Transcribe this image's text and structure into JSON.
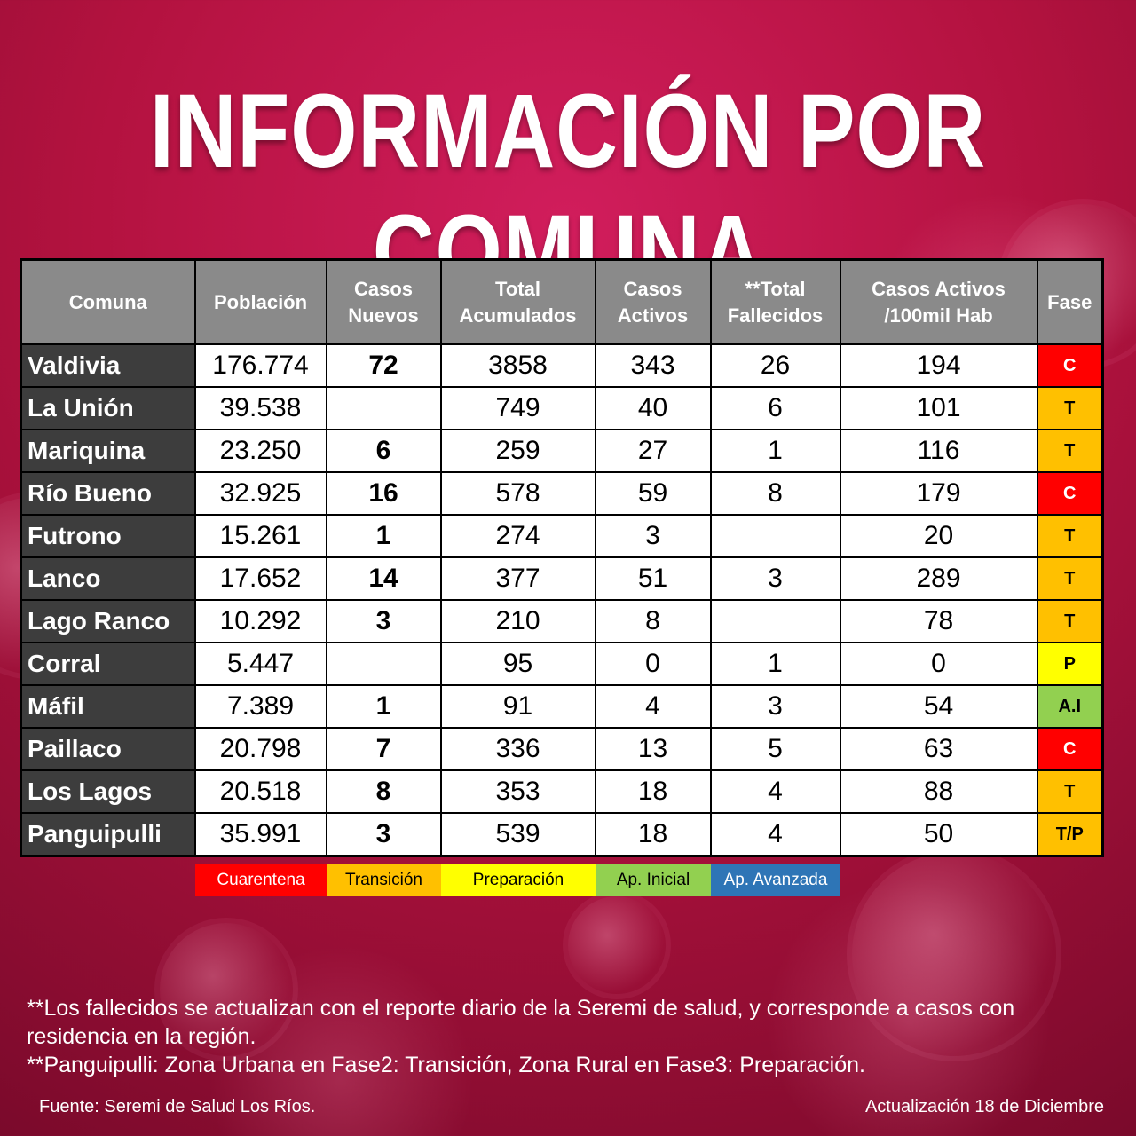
{
  "title": "INFORMACIÓN POR COMUNA",
  "table": {
    "headers": [
      {
        "line1": "Comuna",
        "line2": ""
      },
      {
        "line1": "Población",
        "line2": ""
      },
      {
        "line1": "Casos",
        "line2": "Nuevos"
      },
      {
        "line1": "Total",
        "line2": "Acumulados"
      },
      {
        "line1": "Casos",
        "line2": "Activos"
      },
      {
        "line1": "**Total",
        "line2": "Fallecidos"
      },
      {
        "line1": "Casos Activos",
        "line2": "/100mil Hab"
      },
      {
        "line1": "Fase",
        "line2": ""
      }
    ],
    "rows": [
      {
        "comuna": "Valdivia",
        "poblacion": "176.774",
        "nuevos": "72",
        "acumulados": "3858",
        "activos": "343",
        "fallecidos": "26",
        "por100mil": "194",
        "fase": "C"
      },
      {
        "comuna": "La Unión",
        "poblacion": "39.538",
        "nuevos": "",
        "acumulados": "749",
        "activos": "40",
        "fallecidos": "6",
        "por100mil": "101",
        "fase": "T"
      },
      {
        "comuna": "Mariquina",
        "poblacion": "23.250",
        "nuevos": "6",
        "acumulados": "259",
        "activos": "27",
        "fallecidos": "1",
        "por100mil": "116",
        "fase": "T"
      },
      {
        "comuna": "Río Bueno",
        "poblacion": "32.925",
        "nuevos": "16",
        "acumulados": "578",
        "activos": "59",
        "fallecidos": "8",
        "por100mil": "179",
        "fase": "C"
      },
      {
        "comuna": "Futrono",
        "poblacion": "15.261",
        "nuevos": "1",
        "acumulados": "274",
        "activos": "3",
        "fallecidos": "",
        "por100mil": "20",
        "fase": "T"
      },
      {
        "comuna": "Lanco",
        "poblacion": "17.652",
        "nuevos": "14",
        "acumulados": "377",
        "activos": "51",
        "fallecidos": "3",
        "por100mil": "289",
        "fase": "T"
      },
      {
        "comuna": "Lago Ranco",
        "poblacion": "10.292",
        "nuevos": "3",
        "acumulados": "210",
        "activos": "8",
        "fallecidos": "",
        "por100mil": "78",
        "fase": "T"
      },
      {
        "comuna": "Corral",
        "poblacion": "5.447",
        "nuevos": "",
        "acumulados": "95",
        "activos": "0",
        "fallecidos": "1",
        "por100mil": "0",
        "fase": "P"
      },
      {
        "comuna": "Máfil",
        "poblacion": "7.389",
        "nuevos": "1",
        "acumulados": "91",
        "activos": "4",
        "fallecidos": "3",
        "por100mil": "54",
        "fase": "A.I"
      },
      {
        "comuna": "Paillaco",
        "poblacion": "20.798",
        "nuevos": "7",
        "acumulados": "336",
        "activos": "13",
        "fallecidos": "5",
        "por100mil": "63",
        "fase": "C"
      },
      {
        "comuna": "Los Lagos",
        "poblacion": "20.518",
        "nuevos": "8",
        "acumulados": "353",
        "activos": "18",
        "fallecidos": "4",
        "por100mil": "88",
        "fase": "T"
      },
      {
        "comuna": "Panguipulli",
        "poblacion": "35.991",
        "nuevos": "3",
        "acumulados": "539",
        "activos": "18",
        "fallecidos": "4",
        "por100mil": "50",
        "fase": "T/P"
      }
    ]
  },
  "phase_colors": {
    "C": {
      "bg": "#ff0000",
      "fg": "#ffffff"
    },
    "T": {
      "bg": "#ffc000",
      "fg": "#000000"
    },
    "P": {
      "bg": "#ffff00",
      "fg": "#000000"
    },
    "A.I": {
      "bg": "#92d050",
      "fg": "#000000"
    },
    "T/P": {
      "bg": "#ffc000",
      "fg": "#000000"
    }
  },
  "legend": [
    {
      "label": "Cuarentena",
      "bg": "#ff0000",
      "fg": "#ffffff"
    },
    {
      "label": "Transición",
      "bg": "#ffc000",
      "fg": "#000000"
    },
    {
      "label": "Preparación",
      "bg": "#ffff00",
      "fg": "#000000"
    },
    {
      "label": "Ap. Inicial",
      "bg": "#92d050",
      "fg": "#000000"
    },
    {
      "label": "Ap. Avanzada",
      "bg": "#2e75b6",
      "fg": "#ffffff"
    }
  ],
  "notes": [
    "**Los fallecidos se actualizan con el reporte diario de la Seremi de salud, y corresponde a casos con residencia en la región.",
    "**Panguipulli: Zona Urbana en Fase2: Transición, Zona Rural en Fase3: Preparación."
  ],
  "footer": {
    "source": "Fuente: Seremi de Salud Los Ríos.",
    "updated": "Actualización 18 de Diciembre"
  }
}
